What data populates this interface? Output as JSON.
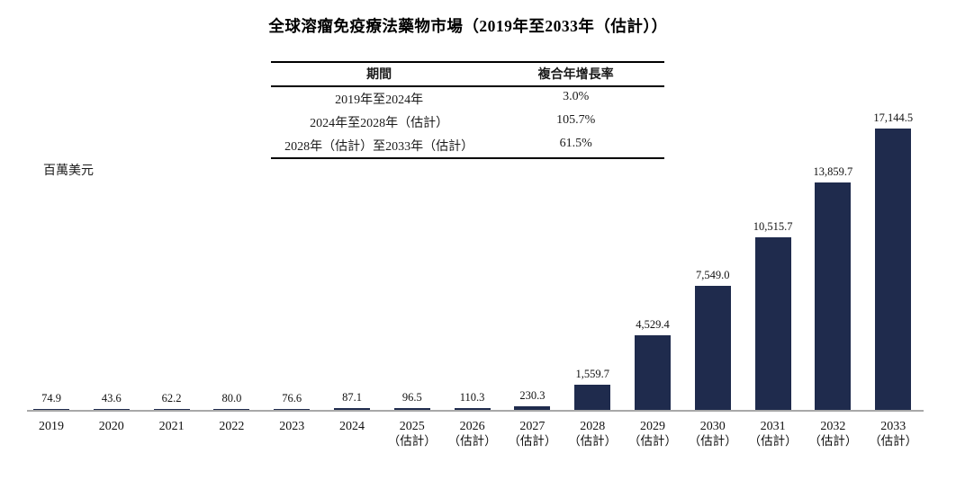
{
  "title": "全球溶瘤免疫療法藥物市場（2019年至2033年（估計））",
  "unit_label": "百萬美元",
  "cagr_table": {
    "headers": [
      "期間",
      "複合年增長率"
    ],
    "rows": [
      {
        "period": "2019年至2024年",
        "cagr": "3.0%"
      },
      {
        "period": "2024年至2028年（估計）",
        "cagr": "105.7%"
      },
      {
        "period": "2028年（估計）至2033年（估計）",
        "cagr": "61.5%"
      }
    ]
  },
  "chart_data": {
    "type": "bar",
    "title": "全球溶瘤免疫療法藥物市場（2019年至2033年（估計））",
    "ylabel": "百萬美元",
    "xlabel": "",
    "categories": [
      "2019",
      "2020",
      "2021",
      "2022",
      "2023",
      "2024",
      "2025",
      "2026",
      "2027",
      "2028",
      "2029",
      "2030",
      "2031",
      "2032",
      "2033"
    ],
    "category_sublabels": [
      "",
      "",
      "",
      "",
      "",
      "",
      "（估計）",
      "（估計）",
      "（估計）",
      "（估計）",
      "（估計）",
      "（估計）",
      "（估計）",
      "（估計）",
      "（估計）"
    ],
    "values": [
      74.9,
      43.6,
      62.2,
      80.0,
      76.6,
      87.1,
      96.5,
      110.3,
      230.3,
      1559.7,
      4529.4,
      7549.0,
      10515.7,
      13859.7,
      17144.5
    ],
    "value_labels": [
      "74.9",
      "43.6",
      "62.2",
      "80.0",
      "76.6",
      "87.1",
      "96.5",
      "110.3",
      "230.3",
      "1,559.7",
      "4,529.4",
      "7,549.0",
      "10,515.7",
      "13,859.7",
      "17,144.5"
    ],
    "ylim": [
      0,
      17144.5
    ],
    "grid": false,
    "legend": false,
    "bar_color": "#1f2b4d",
    "axis_color": "#a8a8a8"
  }
}
